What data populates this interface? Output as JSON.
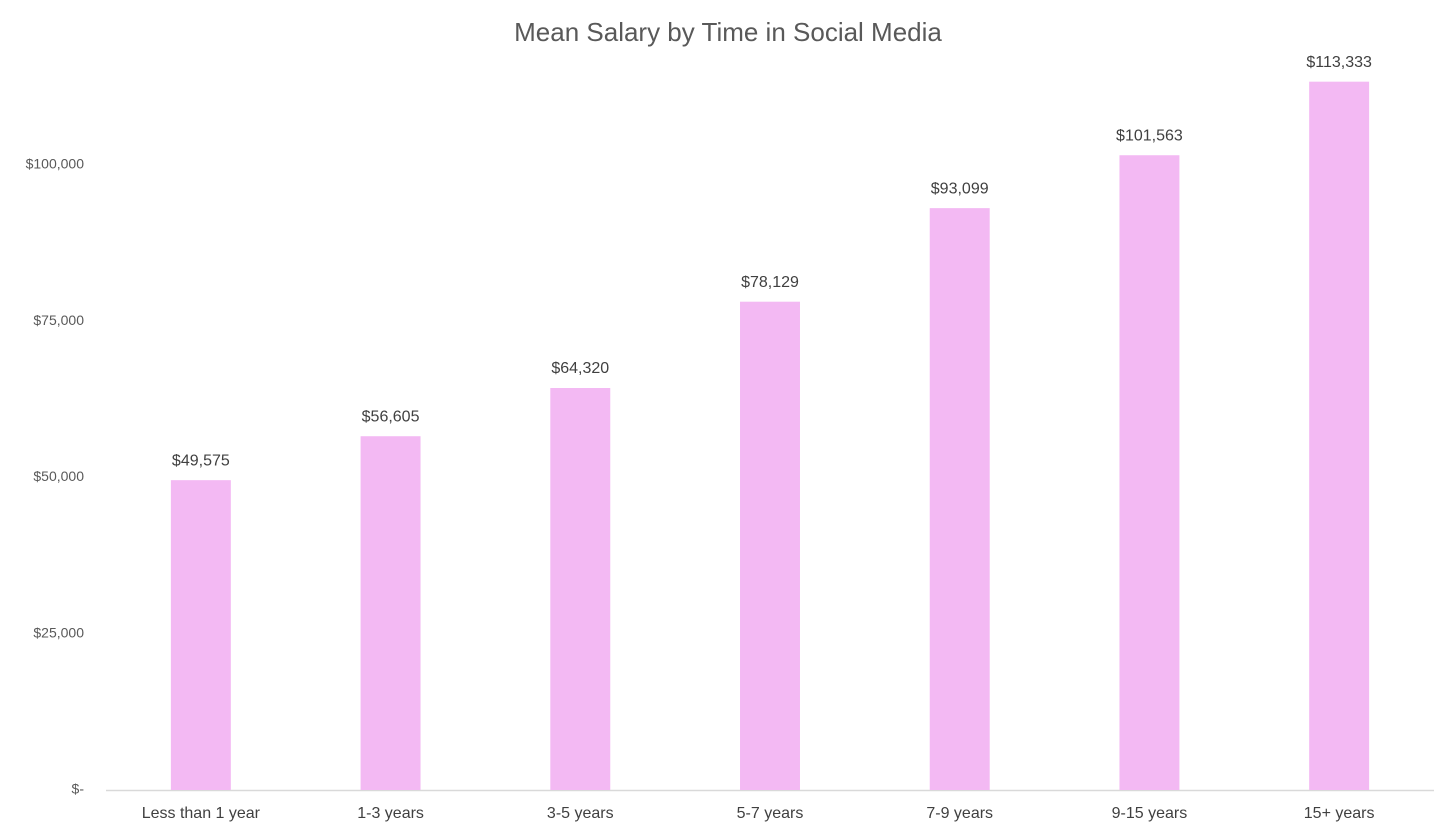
{
  "chart_data": {
    "type": "bar",
    "title": "Mean Salary by Time in Social Media",
    "categories": [
      "Less than 1 year",
      "1-3 years",
      "3-5 years",
      "5-7 years",
      "7-9 years",
      "9-15 years",
      "15+ years"
    ],
    "values": [
      49575,
      56605,
      64320,
      78129,
      93099,
      101563,
      113333
    ],
    "value_labels": [
      "$49,575",
      "$56,605",
      "$64,320",
      "$78,129",
      "$93,099",
      "$101,563",
      "$113,333"
    ],
    "color": "#f3b9f3",
    "ylim": [
      0,
      120000
    ],
    "yticks": [
      {
        "value": 0,
        "label": "$-"
      },
      {
        "value": 25000,
        "label": "$25,000"
      },
      {
        "value": 50000,
        "label": "$50,000"
      },
      {
        "value": 75000,
        "label": "$75,000"
      },
      {
        "value": 100000,
        "label": "$100,000"
      }
    ],
    "grid": false
  }
}
